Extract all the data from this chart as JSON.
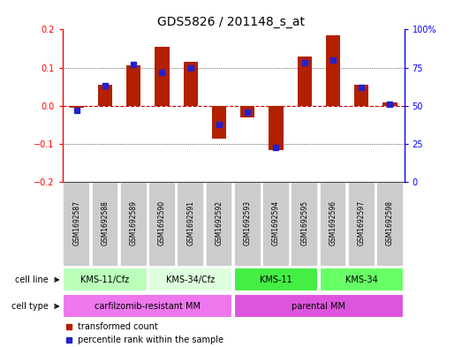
{
  "title": "GDS5826 / 201148_s_at",
  "samples": [
    "GSM1692587",
    "GSM1692588",
    "GSM1692589",
    "GSM1692590",
    "GSM1692591",
    "GSM1692592",
    "GSM1692593",
    "GSM1692594",
    "GSM1692595",
    "GSM1692596",
    "GSM1692597",
    "GSM1692598"
  ],
  "transformed_count": [
    -0.005,
    0.055,
    0.105,
    0.155,
    0.115,
    -0.085,
    -0.03,
    -0.115,
    0.13,
    0.185,
    0.055,
    0.01
  ],
  "percentile_rank": [
    47,
    63,
    77,
    72,
    75,
    38,
    46,
    23,
    78,
    80,
    62,
    51
  ],
  "ylim_left": [
    -0.2,
    0.2
  ],
  "ylim_right": [
    0,
    100
  ],
  "yticks_left": [
    -0.2,
    -0.1,
    0.0,
    0.1,
    0.2
  ],
  "yticks_right": [
    0,
    25,
    50,
    75,
    100
  ],
  "ytick_labels_right": [
    "0",
    "25",
    "50",
    "75",
    "100%"
  ],
  "bar_color": "#b22000",
  "dot_color": "#2222cc",
  "zero_line_color": "#cc0000",
  "grid_color": "black",
  "cell_lines": [
    {
      "label": "KMS-11/Cfz",
      "start": 0,
      "end": 3,
      "color": "#bbffbb"
    },
    {
      "label": "KMS-34/Cfz",
      "start": 3,
      "end": 6,
      "color": "#ddffdd"
    },
    {
      "label": "KMS-11",
      "start": 6,
      "end": 9,
      "color": "#44ee44"
    },
    {
      "label": "KMS-34",
      "start": 9,
      "end": 12,
      "color": "#66ff66"
    }
  ],
  "cell_types": [
    {
      "label": "carfilzomib-resistant MM",
      "start": 0,
      "end": 6,
      "color": "#ee77ee"
    },
    {
      "label": "parental MM",
      "start": 6,
      "end": 12,
      "color": "#dd55dd"
    }
  ],
  "legend_bar_label": "transformed count",
  "legend_dot_label": "percentile rank within the sample",
  "sample_box_color": "#cccccc",
  "row_label_cell_line": "cell line",
  "row_label_cell_type": "cell type"
}
